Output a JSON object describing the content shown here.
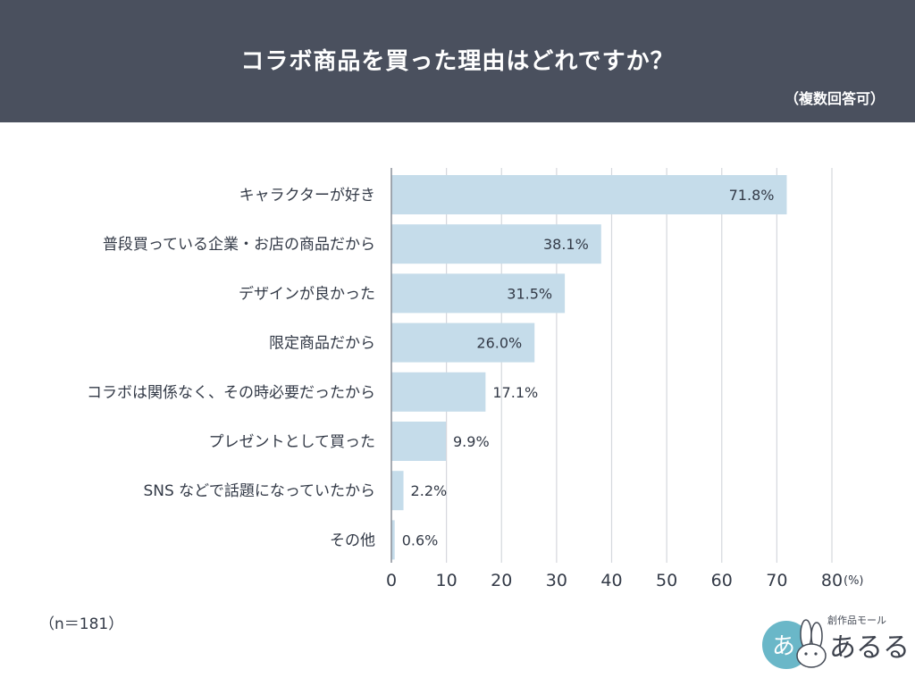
{
  "header": {
    "title": "コラボ商品を買った理由はどれですか？",
    "subtitle": "（複数回答可）"
  },
  "footer": {
    "sample_size": "（n＝181）"
  },
  "logo": {
    "subtext": "創作品モール",
    "name": "あるる",
    "badge_text": "あ"
  },
  "colors": {
    "header_bg": "#4a505e",
    "bar": "#c5dcea",
    "grid": "#d5d8dd",
    "axis": "#8a8f98",
    "text": "#333a47",
    "logo_circle": "#6ab7c8"
  },
  "chart_data": {
    "type": "bar",
    "orientation": "horizontal",
    "categories": [
      "キャラクターが好き",
      "普段買っている企業・お店の商品だから",
      "デザインが良かった",
      "限定商品だから",
      "コラボは関係なく、その時必要だったから",
      "プレゼントとして買った",
      "SNS などで話題になっていたから",
      "その他"
    ],
    "values": [
      71.8,
      38.1,
      31.5,
      26.0,
      17.1,
      9.9,
      2.2,
      0.6
    ],
    "value_labels": [
      "71.8%",
      "38.1%",
      "31.5%",
      "26.0%",
      "17.1%",
      "9.9%",
      "2.2%",
      "0.6%"
    ],
    "xlim": [
      0,
      80
    ],
    "xticks": [
      "0",
      "10",
      "20",
      "30",
      "40",
      "50",
      "60",
      "70",
      "80"
    ],
    "xticks_values": [
      0,
      10,
      20,
      30,
      40,
      50,
      60,
      70,
      80
    ],
    "unit_label": "(%)",
    "grid": true
  }
}
